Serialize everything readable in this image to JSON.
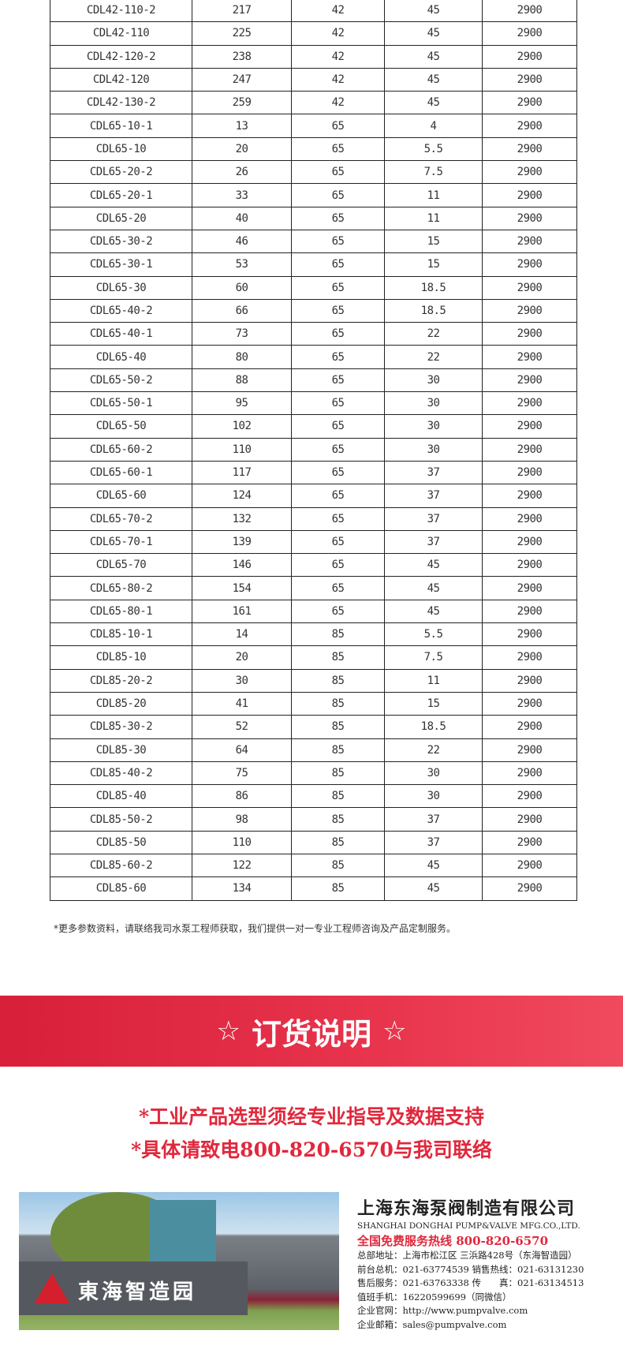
{
  "table": {
    "rows": [
      [
        "CDL42-110-2",
        "217",
        "42",
        "45",
        "2900"
      ],
      [
        "CDL42-110",
        "225",
        "42",
        "45",
        "2900"
      ],
      [
        "CDL42-120-2",
        "238",
        "42",
        "45",
        "2900"
      ],
      [
        "CDL42-120",
        "247",
        "42",
        "45",
        "2900"
      ],
      [
        "CDL42-130-2",
        "259",
        "42",
        "45",
        "2900"
      ],
      [
        "CDL65-10-1",
        "13",
        "65",
        "4",
        "2900"
      ],
      [
        "CDL65-10",
        "20",
        "65",
        "5.5",
        "2900"
      ],
      [
        "CDL65-20-2",
        "26",
        "65",
        "7.5",
        "2900"
      ],
      [
        "CDL65-20-1",
        "33",
        "65",
        "11",
        "2900"
      ],
      [
        "CDL65-20",
        "40",
        "65",
        "11",
        "2900"
      ],
      [
        "CDL65-30-2",
        "46",
        "65",
        "15",
        "2900"
      ],
      [
        "CDL65-30-1",
        "53",
        "65",
        "15",
        "2900"
      ],
      [
        "CDL65-30",
        "60",
        "65",
        "18.5",
        "2900"
      ],
      [
        "CDL65-40-2",
        "66",
        "65",
        "18.5",
        "2900"
      ],
      [
        "CDL65-40-1",
        "73",
        "65",
        "22",
        "2900"
      ],
      [
        "CDL65-40",
        "80",
        "65",
        "22",
        "2900"
      ],
      [
        "CDL65-50-2",
        "88",
        "65",
        "30",
        "2900"
      ],
      [
        "CDL65-50-1",
        "95",
        "65",
        "30",
        "2900"
      ],
      [
        "CDL65-50",
        "102",
        "65",
        "30",
        "2900"
      ],
      [
        "CDL65-60-2",
        "110",
        "65",
        "30",
        "2900"
      ],
      [
        "CDL65-60-1",
        "117",
        "65",
        "37",
        "2900"
      ],
      [
        "CDL65-60",
        "124",
        "65",
        "37",
        "2900"
      ],
      [
        "CDL65-70-2",
        "132",
        "65",
        "37",
        "2900"
      ],
      [
        "CDL65-70-1",
        "139",
        "65",
        "37",
        "2900"
      ],
      [
        "CDL65-70",
        "146",
        "65",
        "45",
        "2900"
      ],
      [
        "CDL65-80-2",
        "154",
        "65",
        "45",
        "2900"
      ],
      [
        "CDL65-80-1",
        "161",
        "65",
        "45",
        "2900"
      ],
      [
        "CDL85-10-1",
        "14",
        "85",
        "5.5",
        "2900"
      ],
      [
        "CDL85-10",
        "20",
        "85",
        "7.5",
        "2900"
      ],
      [
        "CDL85-20-2",
        "30",
        "85",
        "11",
        "2900"
      ],
      [
        "CDL85-20",
        "41",
        "85",
        "15",
        "2900"
      ],
      [
        "CDL85-30-2",
        "52",
        "85",
        "18.5",
        "2900"
      ],
      [
        "CDL85-30",
        "64",
        "85",
        "22",
        "2900"
      ],
      [
        "CDL85-40-2",
        "75",
        "85",
        "30",
        "2900"
      ],
      [
        "CDL85-40",
        "86",
        "85",
        "30",
        "2900"
      ],
      [
        "CDL85-50-2",
        "98",
        "85",
        "37",
        "2900"
      ],
      [
        "CDL85-50",
        "110",
        "85",
        "37",
        "2900"
      ],
      [
        "CDL85-60-2",
        "122",
        "85",
        "45",
        "2900"
      ],
      [
        "CDL85-60",
        "134",
        "85",
        "45",
        "2900"
      ]
    ]
  },
  "note": "*更多参数资料，请联络我司水泵工程师获取，我们提供一对一专业工程师咨询及产品定制服务。",
  "banner": {
    "star": "☆",
    "title": "订货说明",
    "color": "#e0283c"
  },
  "notice": [
    "*工业产品选型须经专业指导及数据支持",
    "*具体请致电800-820-6570与我司联络"
  ],
  "photo": {
    "sign": "東海智造园"
  },
  "company": {
    "name_cn": "上海东海泵阀制造有限公司",
    "name_en": "SHANGHAI DONGHAI PUMP&VALVE MFG.CO.,LTD.",
    "hotline": "全国免费服务热线  800-820-6570",
    "lines": [
      "总部地址：上海市松江区 三浜路428号（东海智造园）",
      "前台总机：021-63774539  销售热线：021-63131230",
      "售后服务：021-63763338  传　　真：021-63134513",
      "值班手机：16220599699（同微信）",
      "企业官网：http://www.pumpvalve.com",
      "企业邮箱：sales@pumpvalve.com"
    ]
  }
}
